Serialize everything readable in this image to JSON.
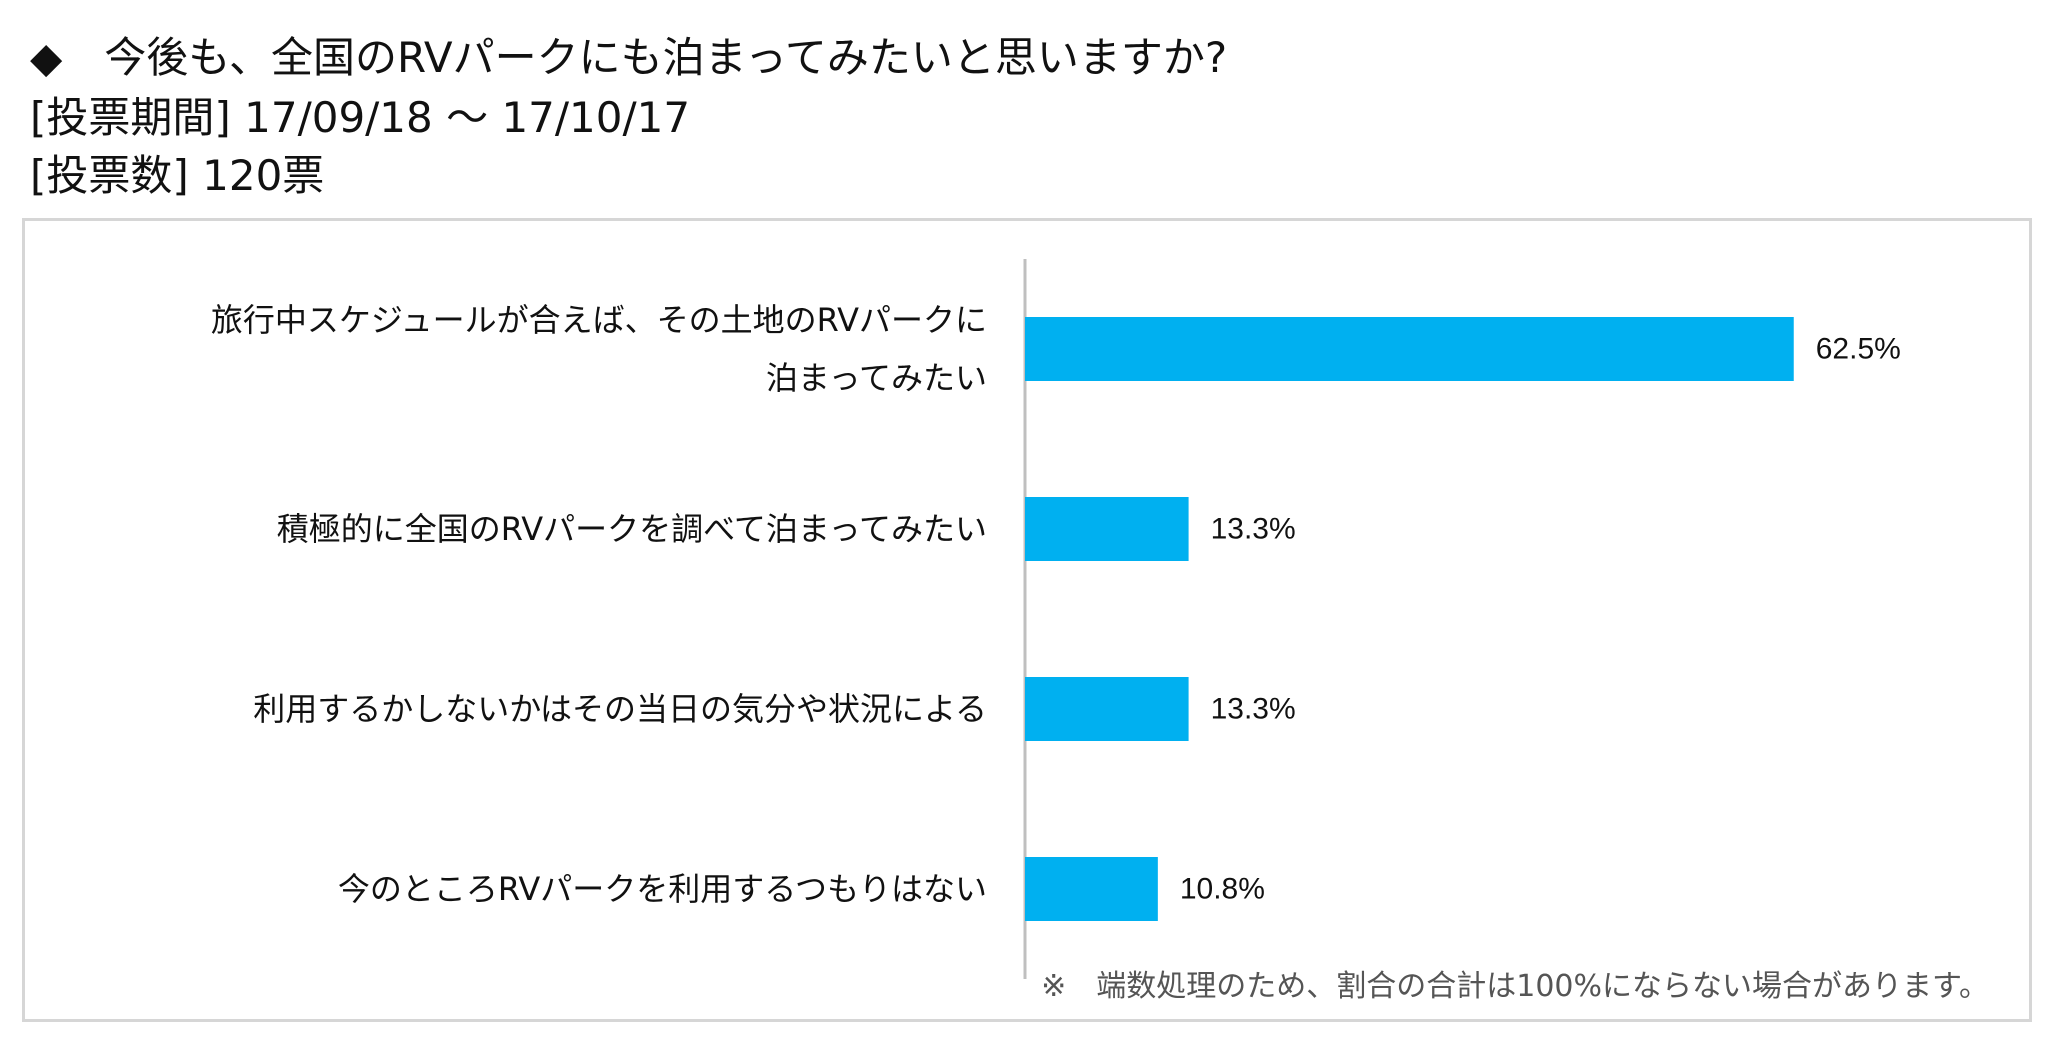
{
  "header": {
    "question": "◆　今後も、全国のRVパークにも泊まってみたいと思いますか?",
    "period": "[投票期間] 17/09/18 ～ 17/10/17",
    "votes": "[投票数] 120票"
  },
  "footnote": "※　端数処理のため、割合の合計は100%にならない場合があります。",
  "colors": {
    "bar": "#00b0f0",
    "axis": "#bfbfbf",
    "frame": "#d6d6d6"
  },
  "chart_data": {
    "type": "bar",
    "orientation": "horizontal",
    "categories": [
      [
        "旅行中スケジュールが合えば、その土地のRVパークに",
        "泊まってみたい"
      ],
      [
        "積極的に全国のRVパークを調べて泊まってみたい"
      ],
      [
        "利用するかしないかはその当日の気分や状況による"
      ],
      [
        "今のところRVパークを利用するつもりはない"
      ]
    ],
    "values": [
      62.5,
      13.3,
      13.3,
      10.8
    ],
    "value_labels": [
      "62.5%",
      "13.3%",
      "13.3%",
      "10.8%"
    ],
    "xlim": [
      0,
      80
    ],
    "grid": false
  }
}
